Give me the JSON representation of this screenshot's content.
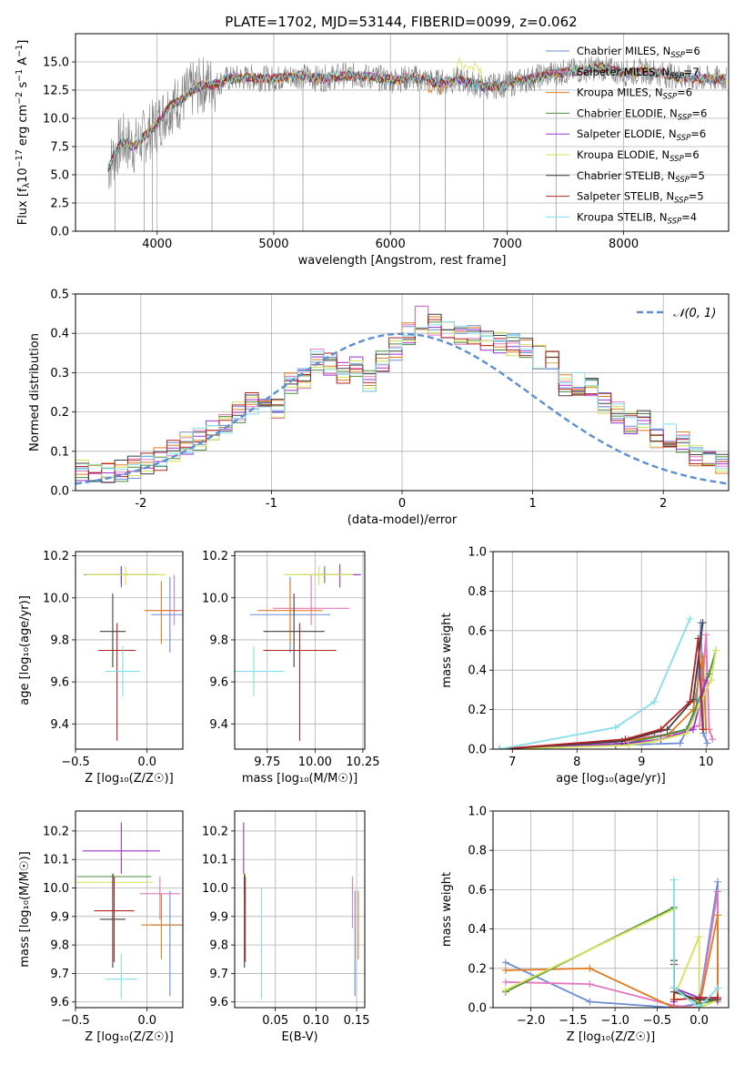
{
  "chart_data": [
    {
      "id": "spectrum",
      "type": "line",
      "title": "PLATE=1702, MJD=53144, FIBERID=0099, z=0.062",
      "xlabel": "wavelength [Angstrom, rest frame]",
      "ylabel": "Flux [f$_\\lambda$10$^{-17}$ erg cm$^{-2}$ s$^{-1}$ A$^{-1}$]",
      "ylabel_parts": {
        "a": "Flux [f",
        "b": "λ",
        "c": "10",
        "d": "−17",
        "e": " erg cm",
        "f": "−2",
        "g": " s",
        "h": "−1",
        "i": " A",
        "j": "−1",
        "k": "]"
      },
      "xlim": [
        3300,
        8900
      ],
      "ylim": [
        0,
        17.5
      ],
      "xticks": [
        4000,
        5000,
        6000,
        7000,
        8000
      ],
      "yticks": [
        0.0,
        2.5,
        5.0,
        7.5,
        10.0,
        12.5,
        15.0
      ],
      "legend_position": "right",
      "data_envelope": {
        "x": [
          3580,
          3620,
          3700,
          3800,
          3900,
          4000,
          4100,
          4200,
          4300,
          4400,
          4500,
          4600,
          4800,
          5000,
          5200,
          5400,
          5600,
          5800,
          6000,
          6200,
          6400,
          6600,
          6800,
          7000,
          7200,
          7400,
          7600,
          7800,
          8000,
          8200,
          8400,
          8600,
          8800
        ],
        "y": [
          5.5,
          6.5,
          8.0,
          7.5,
          8.5,
          9.5,
          11.0,
          11.5,
          12.5,
          13.0,
          13.0,
          13.5,
          13.6,
          13.5,
          13.8,
          13.5,
          13.8,
          13.7,
          13.4,
          13.6,
          13.2,
          13.4,
          12.8,
          13.0,
          13.5,
          14.0,
          14.2,
          14.5,
          14.0,
          14.2,
          13.8,
          13.5,
          13.5
        ]
      },
      "model_bump": {
        "x": [
          6560,
          6620,
          6700,
          6780
        ],
        "y": [
          13.5,
          14.5,
          15.5,
          14.5
        ]
      },
      "legend": [
        {
          "label": "Chabrier MILES, N",
          "sub": "SSP",
          "suffix": "=6",
          "color": "#6b8dd6"
        },
        {
          "label": "Salpeter MILES, N",
          "sub": "SSP",
          "suffix": "=7",
          "color": "#e377c2"
        },
        {
          "label": "Kroupa MILES, N",
          "sub": "SSP",
          "suffix": "=6",
          "color": "#e07b1f"
        },
        {
          "label": "Chabrier ELODIE, N",
          "sub": "SSP",
          "suffix": "=6",
          "color": "#4a8c3f"
        },
        {
          "label": "Salpeter ELODIE, N",
          "sub": "SSP",
          "suffix": "=6",
          "color": "#9a32cd"
        },
        {
          "label": "Kroupa ELODIE, N",
          "sub": "SSP",
          "suffix": "=6",
          "color": "#d4e157"
        },
        {
          "label": "Chabrier STELIB, N",
          "sub": "SSP",
          "suffix": "=5",
          "color": "#404040"
        },
        {
          "label": "Salpeter STELIB, N",
          "sub": "SSP",
          "suffix": "=5",
          "color": "#b22222"
        },
        {
          "label": "Kroupa STELIB, N",
          "sub": "SSP",
          "suffix": "=4",
          "color": "#80deea"
        }
      ]
    },
    {
      "id": "residuals",
      "type": "histogram",
      "xlabel": "(data-model)/error",
      "ylabel": "Normed distribution",
      "xlim": [
        -2.5,
        2.5
      ],
      "ylim": [
        0,
        0.5
      ],
      "xticks": [
        -2,
        -1,
        0,
        1,
        2
      ],
      "yticks": [
        0.0,
        0.1,
        0.2,
        0.3,
        0.4,
        0.5
      ],
      "gaussian_legend": "𝒩(0, 1)",
      "bin_width": 0.1,
      "bins_base": [
        0.04,
        0.05,
        0.04,
        0.04,
        0.05,
        0.06,
        0.07,
        0.08,
        0.1,
        0.12,
        0.13,
        0.15,
        0.17,
        0.2,
        0.22,
        0.23,
        0.21,
        0.27,
        0.29,
        0.33,
        0.32,
        0.3,
        0.32,
        0.28,
        0.33,
        0.36,
        0.4,
        0.44,
        0.42,
        0.41,
        0.39,
        0.4,
        0.38,
        0.38,
        0.37,
        0.36,
        0.34,
        0.33,
        0.27,
        0.27,
        0.26,
        0.22,
        0.2,
        0.17,
        0.18,
        0.13,
        0.14,
        0.12,
        0.09,
        0.08,
        0.07,
        0.06,
        0.05,
        0.05,
        0.04,
        0.03,
        0.02,
        0.02
      ],
      "bins_start": -2.6
    },
    {
      "id": "age-vs-Z",
      "type": "errorbar",
      "xlabel": "Z [log₁₀(Z/Z☉)]",
      "ylabel": "age  [log₁₀(age/yr)]",
      "xlim": [
        -0.5,
        0.25
      ],
      "ylim": [
        9.28,
        10.22
      ],
      "xticks": [
        -0.5,
        0.0
      ],
      "xticklabels": [
        "−0.5",
        "0.0"
      ],
      "yticks": [
        9.4,
        9.6,
        9.8,
        10.0,
        10.2
      ],
      "points": [
        {
          "x": 0.16,
          "y": 9.92,
          "xerr": 0.13,
          "ylo": 9.74,
          "yhi": 10.1,
          "color": "#6b8dd6"
        },
        {
          "x": 0.19,
          "y": 9.94,
          "xerr": 0.1,
          "ylo": 9.87,
          "yhi": 10.11,
          "color": "#e377c2"
        },
        {
          "x": 0.1,
          "y": 9.94,
          "xerr": 0.12,
          "ylo": 9.78,
          "yhi": 10.08,
          "color": "#e07b1f"
        },
        {
          "x": -0.18,
          "y": 10.11,
          "xerr": 0.26,
          "ylo": 10.07,
          "yhi": 10.15,
          "color": "#4a8c3f"
        },
        {
          "x": -0.18,
          "y": 10.11,
          "xerr": 0.25,
          "ylo": 10.05,
          "yhi": 10.15,
          "color": "#9a32cd"
        },
        {
          "x": -0.15,
          "y": 10.11,
          "xerr": 0.28,
          "ylo": 10.06,
          "yhi": 10.15,
          "color": "#d4e157"
        },
        {
          "x": -0.24,
          "y": 9.84,
          "xerr": 0.09,
          "ylo": 9.67,
          "yhi": 10.02,
          "color": "#404040"
        },
        {
          "x": -0.21,
          "y": 9.75,
          "xerr": 0.13,
          "ylo": 9.32,
          "yhi": 9.88,
          "color": "#b22222"
        },
        {
          "x": -0.17,
          "y": 9.65,
          "xerr": 0.12,
          "ylo": 9.53,
          "yhi": 9.77,
          "color": "#80deea"
        }
      ]
    },
    {
      "id": "age-vs-mass",
      "type": "errorbar",
      "xlabel": "mass [log₁₀(M/M☉)]",
      "ylabel": "",
      "xlim": [
        9.58,
        10.26
      ],
      "ylim": [
        9.28,
        10.22
      ],
      "xticks": [
        9.75,
        10.0,
        10.25
      ],
      "xticklabels": [
        "9.75",
        "10.00",
        "10.25"
      ],
      "yticks": [
        9.4,
        9.6,
        9.8,
        10.0,
        10.2
      ],
      "points": [
        {
          "x": 9.87,
          "y": 9.92,
          "xerr": 0.21,
          "ylo": 9.74,
          "yhi": 10.1,
          "color": "#6b8dd6"
        },
        {
          "x": 9.98,
          "y": 9.95,
          "xerr": 0.2,
          "ylo": 9.87,
          "yhi": 10.11,
          "color": "#e377c2"
        },
        {
          "x": 9.87,
          "y": 9.94,
          "xerr": 0.17,
          "ylo": 9.78,
          "yhi": 10.08,
          "color": "#e07b1f"
        },
        {
          "x": 10.05,
          "y": 10.11,
          "xerr": 0.18,
          "ylo": 10.07,
          "yhi": 10.15,
          "color": "#4a8c3f"
        },
        {
          "x": 10.13,
          "y": 10.11,
          "xerr": 0.11,
          "ylo": 10.05,
          "yhi": 10.16,
          "color": "#9a32cd"
        },
        {
          "x": 10.02,
          "y": 10.11,
          "xerr": 0.18,
          "ylo": 10.06,
          "yhi": 10.15,
          "color": "#d4e157"
        },
        {
          "x": 9.89,
          "y": 9.84,
          "xerr": 0.16,
          "ylo": 9.67,
          "yhi": 10.02,
          "color": "#404040"
        },
        {
          "x": 9.92,
          "y": 9.75,
          "xerr": 0.19,
          "ylo": 9.32,
          "yhi": 9.88,
          "color": "#b22222"
        },
        {
          "x": 9.68,
          "y": 9.65,
          "xerr": 0.16,
          "ylo": 9.53,
          "yhi": 9.77,
          "color": "#80deea"
        }
      ]
    },
    {
      "id": "massweight-vs-age",
      "type": "line",
      "xlabel": "age  [log₁₀(age/yr)]",
      "ylabel": "mass weight",
      "xlim": [
        6.7,
        10.35
      ],
      "ylim": [
        0,
        1.0
      ],
      "xticks": [
        7,
        8,
        9,
        10
      ],
      "yticks": [
        0.0,
        0.2,
        0.4,
        0.6,
        0.8,
        1.0
      ],
      "series": [
        {
          "color": "#6b8dd6",
          "x": [
            6.8,
            8.6,
            9.6,
            9.85,
            9.92,
            9.96,
            10.02
          ],
          "y": [
            0.0,
            0.02,
            0.03,
            0.2,
            0.64,
            0.08,
            0.03
          ]
        },
        {
          "color": "#e377c2",
          "x": [
            6.8,
            8.8,
            9.5,
            9.9,
            10.0,
            10.05,
            10.1
          ],
          "y": [
            0.0,
            0.05,
            0.08,
            0.12,
            0.58,
            0.1,
            0.05
          ]
        },
        {
          "color": "#e07b1f",
          "x": [
            6.8,
            8.7,
            9.4,
            9.8,
            9.95,
            10.0
          ],
          "y": [
            0.0,
            0.04,
            0.07,
            0.2,
            0.47,
            0.1
          ]
        },
        {
          "color": "#4a8c3f",
          "x": [
            6.8,
            8.6,
            9.2,
            9.7,
            10.05,
            10.15
          ],
          "y": [
            0.0,
            0.02,
            0.06,
            0.1,
            0.38,
            0.5
          ]
        },
        {
          "color": "#9a32cd",
          "x": [
            6.8,
            8.8,
            9.3,
            9.8,
            10.0
          ],
          "y": [
            0.0,
            0.03,
            0.05,
            0.1,
            0.35
          ]
        },
        {
          "color": "#d4e157",
          "x": [
            6.8,
            8.8,
            9.2,
            9.7,
            10.08,
            10.15
          ],
          "y": [
            0.0,
            0.02,
            0.04,
            0.08,
            0.35,
            0.5
          ]
        },
        {
          "color": "#404040",
          "x": [
            6.8,
            8.7,
            9.4,
            9.8,
            9.95
          ],
          "y": [
            0.0,
            0.04,
            0.1,
            0.25,
            0.64
          ]
        },
        {
          "color": "#b22222",
          "x": [
            6.8,
            8.75,
            9.3,
            9.75,
            9.88,
            9.95
          ],
          "y": [
            0.0,
            0.05,
            0.1,
            0.24,
            0.56,
            0.1
          ]
        },
        {
          "color": "#80deea",
          "x": [
            6.8,
            8.6,
            9.2,
            9.75
          ],
          "y": [
            0.0,
            0.11,
            0.24,
            0.66
          ]
        }
      ]
    },
    {
      "id": "mass-vs-Z",
      "type": "errorbar",
      "xlabel": "Z [log₁₀(Z/Z☉)]",
      "ylabel": "mass [log₁₀(M/M☉)]",
      "xlim": [
        -0.5,
        0.25
      ],
      "ylim": [
        9.58,
        10.27
      ],
      "xticks": [
        -0.5,
        0.0
      ],
      "xticklabels": [
        "−0.5",
        "0.0"
      ],
      "yticks": [
        9.6,
        9.7,
        9.8,
        9.9,
        10.0,
        10.1,
        10.2
      ],
      "points": [
        {
          "x": 0.16,
          "y": 9.87,
          "xerr": 0.13,
          "ylo": 9.62,
          "yhi": 9.99,
          "color": "#6b8dd6"
        },
        {
          "x": 0.09,
          "y": 9.98,
          "xerr": 0.14,
          "ylo": 9.89,
          "yhi": 10.04,
          "color": "#e377c2"
        },
        {
          "x": 0.1,
          "y": 9.87,
          "xerr": 0.14,
          "ylo": 9.75,
          "yhi": 9.98,
          "color": "#e07b1f"
        },
        {
          "x": -0.23,
          "y": 10.04,
          "xerr": 0.26,
          "ylo": 9.97,
          "yhi": 10.05,
          "color": "#4a8c3f"
        },
        {
          "x": -0.18,
          "y": 10.13,
          "xerr": 0.27,
          "ylo": 10.05,
          "yhi": 10.23,
          "color": "#9a32cd"
        },
        {
          "x": -0.23,
          "y": 10.02,
          "xerr": 0.27,
          "ylo": 9.95,
          "yhi": 10.05,
          "color": "#d4e157"
        },
        {
          "x": -0.24,
          "y": 9.89,
          "xerr": 0.09,
          "ylo": 9.72,
          "yhi": 10.05,
          "color": "#404040"
        },
        {
          "x": -0.23,
          "y": 9.92,
          "xerr": 0.14,
          "ylo": 9.74,
          "yhi": 10.04,
          "color": "#b22222"
        },
        {
          "x": -0.18,
          "y": 9.68,
          "xerr": 0.11,
          "ylo": 9.61,
          "yhi": 9.77,
          "color": "#80deea"
        }
      ]
    },
    {
      "id": "mass-vs-ebv",
      "type": "errorbar",
      "xlabel": "E(B-V)",
      "ylabel": "",
      "xlim": [
        0.0,
        0.16
      ],
      "ylim": [
        9.58,
        10.27
      ],
      "xticks": [
        0.05,
        0.1,
        0.15
      ],
      "xticklabels": [
        "0.05",
        "0.10",
        "0.15"
      ],
      "yticks": [
        9.6,
        9.7,
        9.8,
        9.9,
        10.0,
        10.1,
        10.2
      ],
      "points": [
        {
          "x": 0.148,
          "y": 9.87,
          "xerr": 0,
          "ylo": 9.62,
          "yhi": 9.99,
          "color": "#6b8dd6"
        },
        {
          "x": 0.145,
          "y": 9.98,
          "xerr": 0,
          "ylo": 9.86,
          "yhi": 10.04,
          "color": "#e377c2"
        },
        {
          "x": 0.152,
          "y": 9.87,
          "xerr": 0,
          "ylo": 9.75,
          "yhi": 9.99,
          "color": "#e07b1f"
        },
        {
          "x": 0.012,
          "y": 10.04,
          "xerr": 0,
          "ylo": 9.98,
          "yhi": 10.05,
          "color": "#4a8c3f"
        },
        {
          "x": 0.011,
          "y": 10.13,
          "xerr": 0,
          "ylo": 10.05,
          "yhi": 10.23,
          "color": "#9a32cd"
        },
        {
          "x": 0.013,
          "y": 10.02,
          "xerr": 0,
          "ylo": 9.95,
          "yhi": 10.05,
          "color": "#d4e157"
        },
        {
          "x": 0.012,
          "y": 9.89,
          "xerr": 0,
          "ylo": 9.72,
          "yhi": 10.05,
          "color": "#404040"
        },
        {
          "x": 0.013,
          "y": 9.92,
          "xerr": 0,
          "ylo": 9.74,
          "yhi": 10.04,
          "color": "#b22222"
        },
        {
          "x": 0.033,
          "y": 9.68,
          "xerr": 0,
          "ylo": 9.61,
          "yhi": 10.0,
          "color": "#80deea"
        }
      ]
    },
    {
      "id": "massweight-vs-Z",
      "type": "line",
      "xlabel": "Z [log₁₀(Z/Z☉)]",
      "ylabel": "mass weight",
      "xlim": [
        -2.45,
        0.35
      ],
      "ylim": [
        0,
        1.0
      ],
      "xticks": [
        -2.0,
        -1.5,
        -1.0,
        -0.5,
        0.0
      ],
      "xticklabels": [
        "−2.0",
        "−1.5",
        "−1.0",
        "−0.5",
        "0.0"
      ],
      "yticks": [
        0.0,
        0.2,
        0.4,
        0.6,
        0.8,
        1.0
      ],
      "series": [
        {
          "color": "#6b8dd6",
          "x": [
            -2.3,
            -1.3,
            -0.3,
            0.0,
            0.22,
            0.22
          ],
          "y": [
            0.23,
            0.03,
            0.0,
            0.02,
            0.64,
            0.04
          ]
        },
        {
          "color": "#e377c2",
          "x": [
            -2.3,
            -1.3,
            -0.3,
            0.0,
            0.22,
            0.22
          ],
          "y": [
            0.13,
            0.12,
            0.01,
            0.0,
            0.59,
            0.03
          ]
        },
        {
          "color": "#e07b1f",
          "x": [
            -2.3,
            -1.3,
            -0.3,
            0.0,
            0.22,
            0.22
          ],
          "y": [
            0.19,
            0.2,
            0.0,
            0.0,
            0.47,
            0.04
          ]
        },
        {
          "color": "#4a8c3f",
          "x": [
            -2.3,
            -0.3,
            -0.3,
            0.0,
            0.22
          ],
          "y": [
            0.08,
            0.51,
            0.1,
            0.02,
            0.04
          ]
        },
        {
          "color": "#9a32cd",
          "x": [
            -0.3,
            -0.3,
            0.0,
            0.22
          ],
          "y": [
            0.03,
            0.1,
            0.05,
            0.05
          ]
        },
        {
          "color": "#d4e157",
          "x": [
            -2.3,
            -0.3,
            -0.3,
            0.0,
            0.0,
            0.22
          ],
          "y": [
            0.09,
            0.5,
            0.05,
            0.36,
            0.0,
            0.04
          ]
        },
        {
          "color": "#404040",
          "x": [
            -0.3,
            -0.3,
            0.0,
            0.22
          ],
          "y": [
            0.24,
            0.08,
            0.04,
            0.04
          ]
        },
        {
          "color": "#b22222",
          "x": [
            -0.3,
            -0.3,
            0.0,
            0.22
          ],
          "y": [
            0.22,
            0.04,
            0.05,
            0.05
          ]
        },
        {
          "color": "#80deea",
          "x": [
            -0.3,
            -0.3,
            0.0,
            0.22
          ],
          "y": [
            0.65,
            0.1,
            0.0,
            0.1
          ]
        }
      ]
    }
  ]
}
